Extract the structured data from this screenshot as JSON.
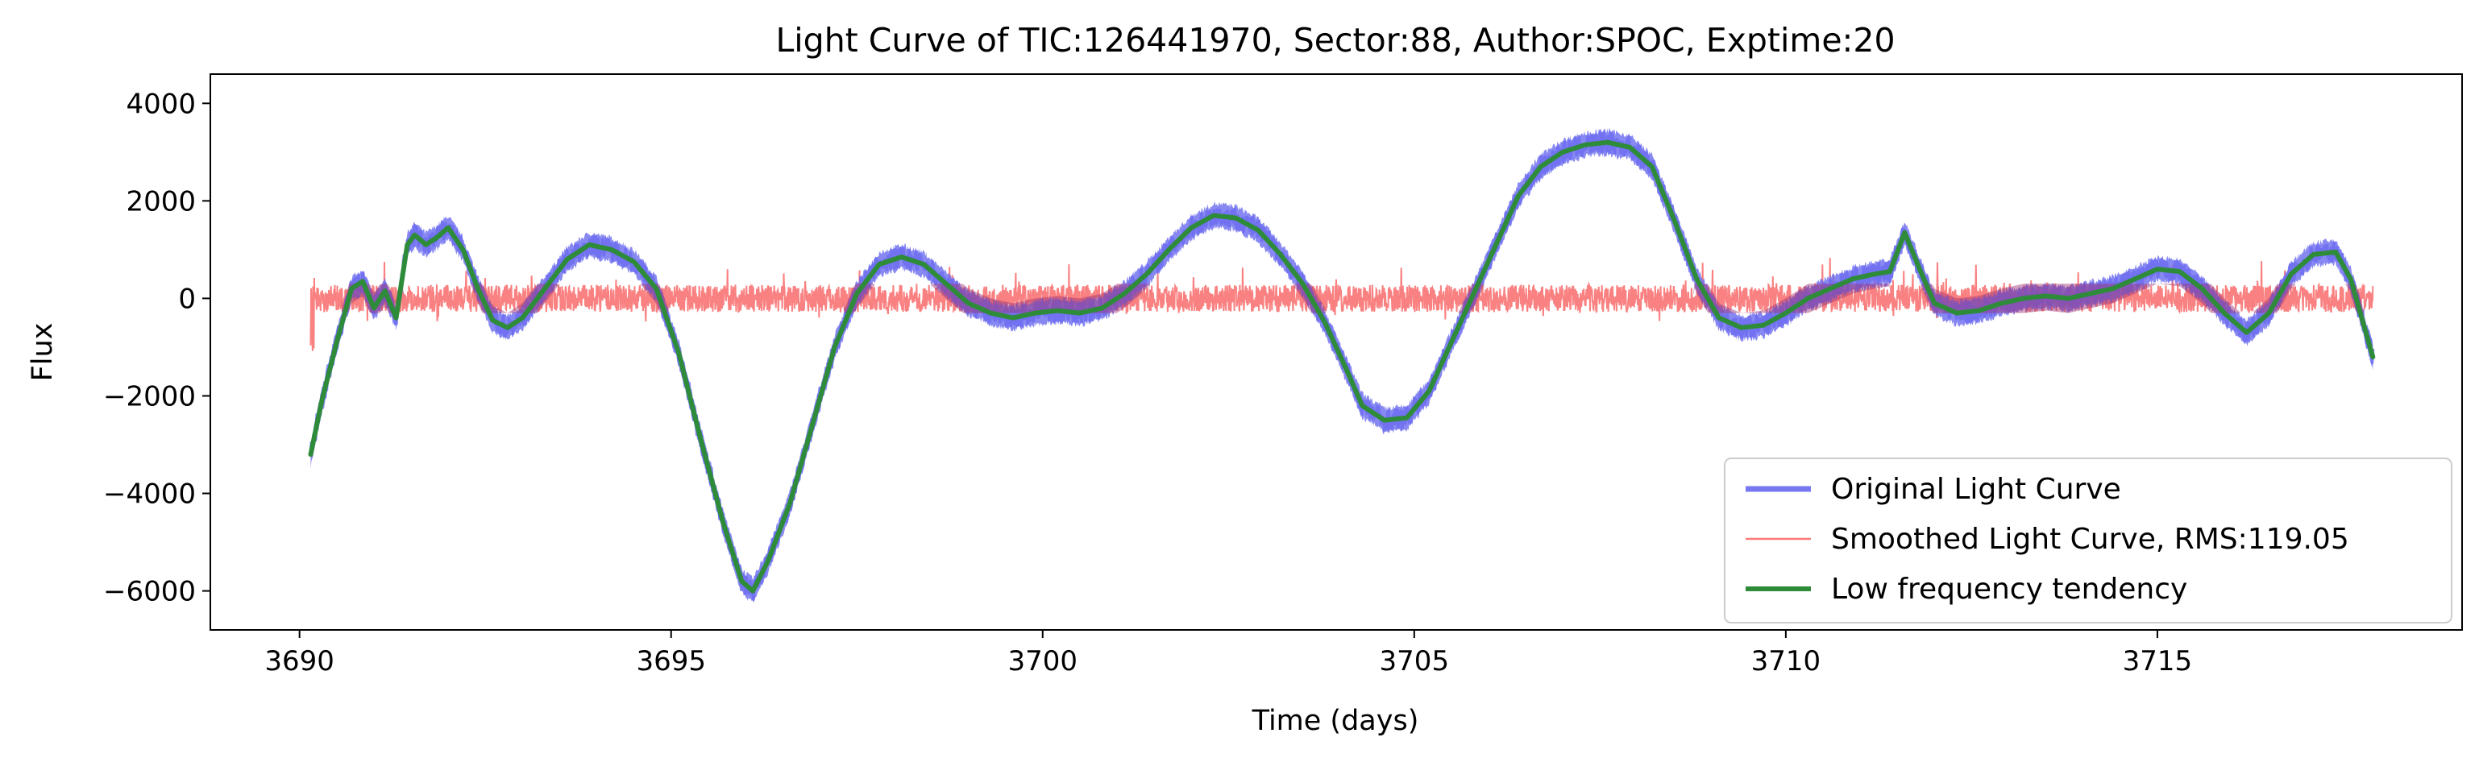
{
  "chart_data": {
    "type": "line",
    "title": "Light Curve of TIC:126441970, Sector:88, Author:SPOC, Exptime:20",
    "xlabel": "Time (days)",
    "ylabel": "Flux",
    "xlim": [
      3688.8,
      3719.1
    ],
    "ylim": [
      -6800,
      4600
    ],
    "xticks": [
      3690,
      3695,
      3700,
      3705,
      3710,
      3715
    ],
    "yticks": [
      -6000,
      -4000,
      -2000,
      0,
      2000,
      4000
    ],
    "xtick_labels": [
      "3690",
      "3695",
      "3700",
      "3705",
      "3710",
      "3715"
    ],
    "ytick_labels": [
      "−6000",
      "−4000",
      "−2000",
      "0",
      "2000",
      "4000"
    ],
    "grid": false,
    "legend_position": "lower-right",
    "tendency": {
      "x": [
        3690.15,
        3690.3,
        3690.5,
        3690.7,
        3690.85,
        3691.0,
        3691.15,
        3691.3,
        3691.45,
        3691.55,
        3691.7,
        3691.85,
        3692.0,
        3692.2,
        3692.4,
        3692.6,
        3692.8,
        3693.0,
        3693.3,
        3693.6,
        3693.9,
        3694.2,
        3694.5,
        3694.8,
        3695.1,
        3695.4,
        3695.7,
        3695.95,
        3696.1,
        3696.3,
        3696.6,
        3696.9,
        3697.2,
        3697.5,
        3697.8,
        3698.1,
        3698.4,
        3698.7,
        3699.0,
        3699.3,
        3699.6,
        3699.9,
        3700.2,
        3700.5,
        3700.8,
        3701.1,
        3701.4,
        3701.7,
        3702.0,
        3702.3,
        3702.6,
        3702.9,
        3703.2,
        3703.5,
        3703.8,
        3704.1,
        3704.3,
        3704.6,
        3704.9,
        3705.2,
        3705.5,
        3705.8,
        3706.1,
        3706.4,
        3706.7,
        3707.0,
        3707.3,
        3707.6,
        3707.9,
        3708.2,
        3708.5,
        3708.8,
        3709.1,
        3709.4,
        3709.7,
        3710.0,
        3710.3,
        3710.6,
        3710.9,
        3711.2,
        3711.4,
        3711.6,
        3711.8,
        3712.0,
        3712.3,
        3712.6,
        3712.9,
        3713.2,
        3713.5,
        3713.8,
        3714.1,
        3714.4,
        3714.7,
        3715.0,
        3715.3,
        3715.6,
        3715.9,
        3716.2,
        3716.5,
        3716.8,
        3717.1,
        3717.4,
        3717.6,
        3717.9
      ],
      "y": [
        -3200,
        -2100,
        -900,
        200,
        350,
        -200,
        150,
        -400,
        1100,
        1300,
        1100,
        1250,
        1450,
        1000,
        200,
        -450,
        -600,
        -400,
        200,
        800,
        1100,
        1000,
        750,
        200,
        -1100,
        -2900,
        -4600,
        -5800,
        -6000,
        -5400,
        -4200,
        -2600,
        -1000,
        100,
        700,
        850,
        700,
        300,
        -100,
        -300,
        -400,
        -300,
        -250,
        -300,
        -200,
        100,
        500,
        1000,
        1450,
        1700,
        1650,
        1400,
        900,
        300,
        -500,
        -1500,
        -2200,
        -2500,
        -2450,
        -1900,
        -900,
        100,
        1100,
        2100,
        2700,
        3000,
        3150,
        3200,
        3100,
        2700,
        1600,
        400,
        -400,
        -600,
        -550,
        -300,
        0,
        200,
        400,
        500,
        550,
        1350,
        600,
        -100,
        -300,
        -250,
        -100,
        0,
        50,
        0,
        100,
        200,
        400,
        600,
        550,
        200,
        -300,
        -700,
        -300,
        500,
        900,
        950,
        400,
        -1200
      ]
    },
    "series": [
      {
        "name": "Original Light Curve",
        "color": "#7777f2"
      },
      {
        "name": "Smoothed Light Curve, RMS:119.05",
        "color": "#fa7a7a"
      },
      {
        "name": "Low frequency tendency",
        "color": "#2e8b3a"
      }
    ]
  }
}
